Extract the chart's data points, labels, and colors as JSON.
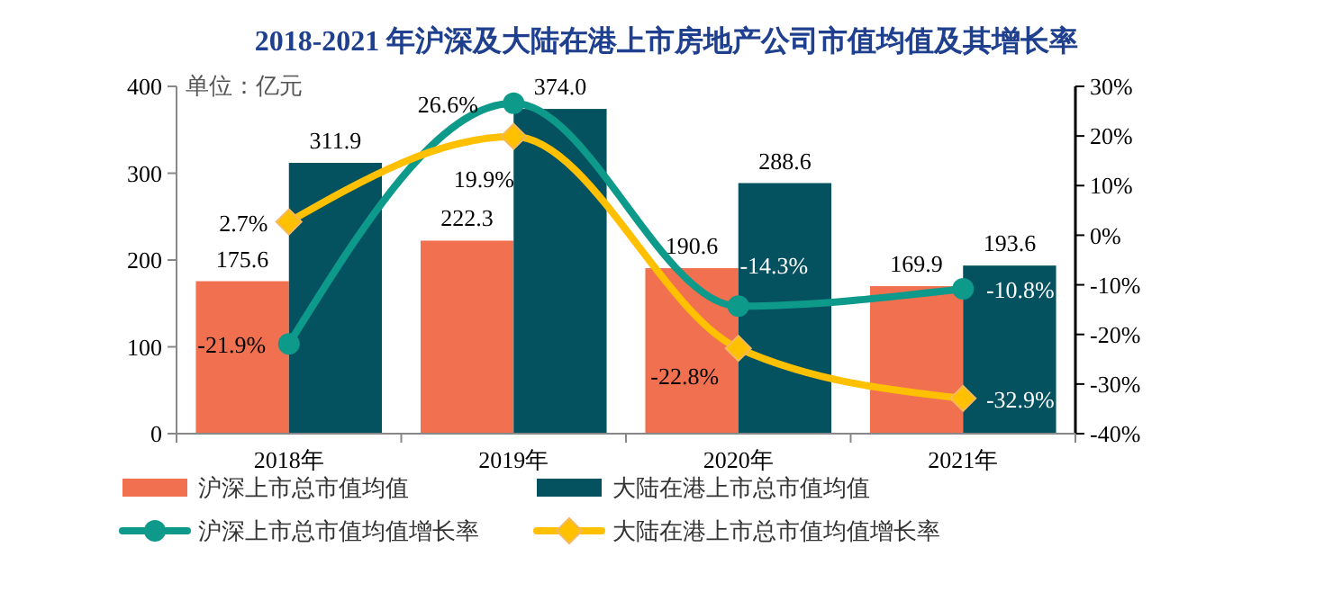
{
  "chart_data": {
    "type": "bar",
    "title": "2018-2021 年沪深及大陆在港上市房地产公司市值均值及其增长率",
    "annotations": [
      "单位：亿元"
    ],
    "categories": [
      "2018年",
      "2019年",
      "2020年",
      "2021年"
    ],
    "series": [
      {
        "name": "沪深上市总市值均值",
        "color": "#f07050",
        "values": [
          175.6,
          222.3,
          190.6,
          169.9
        ],
        "value_labels": [
          "175.6",
          "222.3",
          "190.6",
          "169.9"
        ]
      },
      {
        "name": "大陆在港上市总市值均值",
        "color": "#04515f",
        "values": [
          311.9,
          374.0,
          288.6,
          193.6
        ],
        "value_labels": [
          "311.9",
          "374.0",
          "288.6",
          "193.6"
        ]
      },
      {
        "name": "沪深上市总市值均值增长率",
        "type": "line",
        "axis": "y2",
        "marker": "circle",
        "color": "#0e9a8a",
        "values": [
          -21.9,
          26.6,
          -14.3,
          -10.8
        ],
        "value_labels": [
          "-21.9%",
          "26.6%",
          "-14.3%",
          "-10.8%"
        ]
      },
      {
        "name": "大陆在港上市总市值均值增长率",
        "type": "line",
        "axis": "y2",
        "marker": "diamond",
        "color": "#ffc000",
        "values": [
          2.7,
          19.9,
          -22.8,
          -32.9
        ],
        "value_labels": [
          "2.7%",
          "19.9%",
          "-22.8%",
          "-32.9%"
        ]
      }
    ],
    "ylim": [
      0,
      400
    ],
    "yticks": [
      0,
      100,
      200,
      300,
      400
    ],
    "y2lim": [
      -40,
      30
    ],
    "y2ticks": [
      {
        "value": -40,
        "label": "-40%"
      },
      {
        "value": -30,
        "label": "-30%"
      },
      {
        "value": -20,
        "label": "-20%"
      },
      {
        "value": -10,
        "label": "-10%"
      },
      {
        "value": 0,
        "label": "0%"
      },
      {
        "value": 10,
        "label": "10%"
      },
      {
        "value": 20,
        "label": "20%"
      },
      {
        "value": 30,
        "label": "30%"
      }
    ],
    "grid": false,
    "legend": "bottom"
  }
}
